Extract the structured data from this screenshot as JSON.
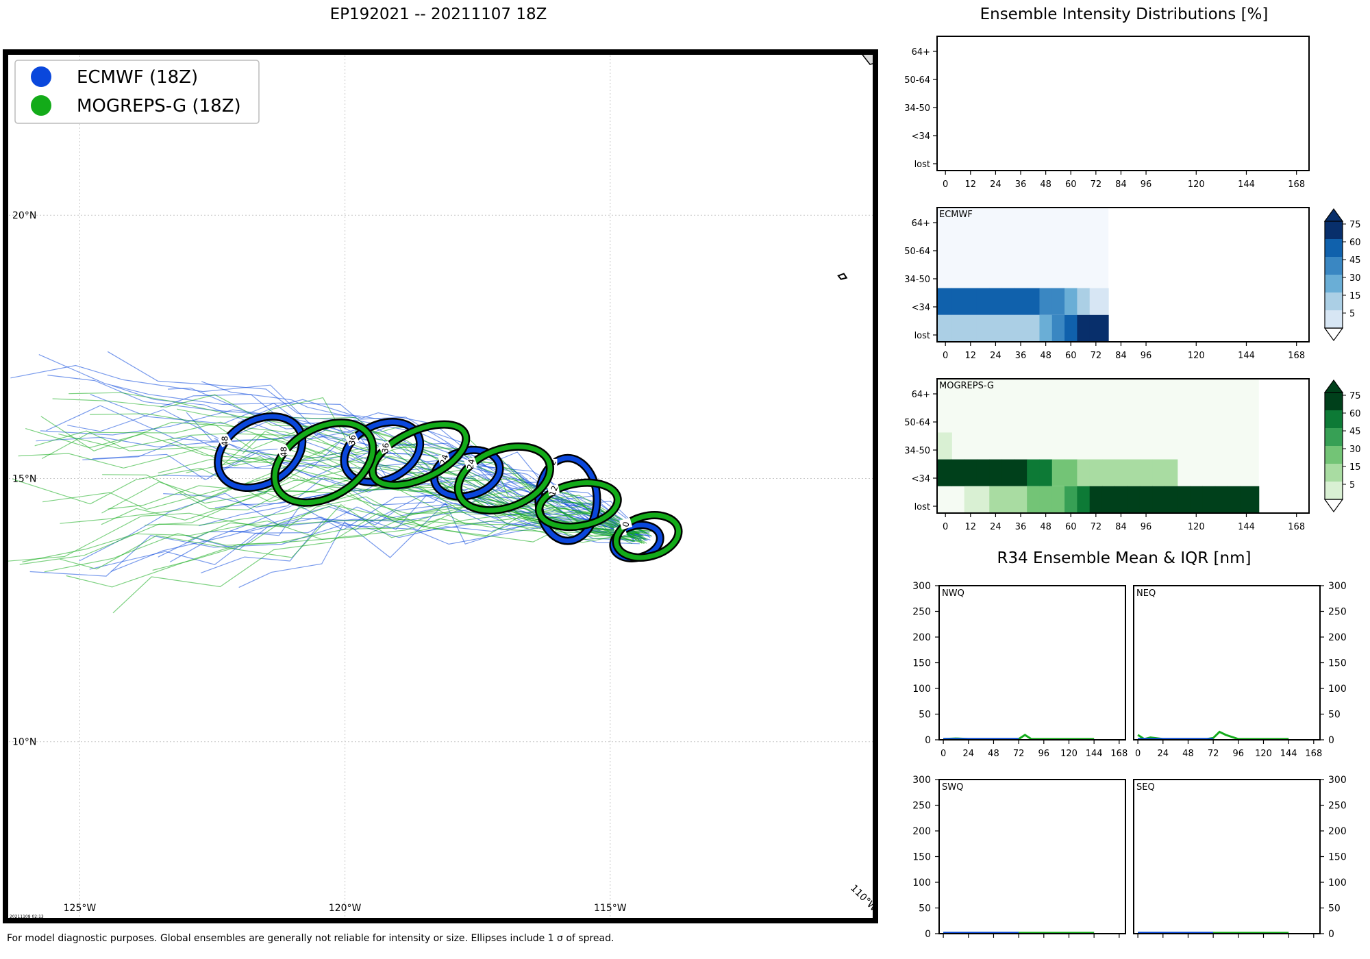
{
  "page": {
    "map_title": "EP192021 -- 20211107 18Z",
    "intensity_title": "Ensemble Intensity Distributions [%]",
    "r34_title": "R34 Ensemble Mean & IQR [nm]",
    "caption": "For model diagnostic purposes. Global ensembles are generally not reliable for intensity or size. Ellipses include 1 σ of spread.",
    "stamp": "20211108 02:13"
  },
  "chart_data": [
    {
      "type": "map",
      "legend": [
        {
          "label": "ECMWF (18Z)",
          "color": "#0a47dc"
        },
        {
          "label": "MOGREPS-G (18Z)",
          "color": "#13ab19"
        }
      ],
      "lon_labels": [
        "125°W",
        "120°W",
        "115°W",
        "110°W"
      ],
      "lon_values": [
        -125,
        -120,
        -115,
        -110
      ],
      "lat_labels": [
        "20°N",
        "15°N",
        "10°N"
      ],
      "lat_values": [
        20,
        15,
        10
      ],
      "xlim": [
        -126.4,
        -110.0
      ],
      "ylim": [
        6.6,
        23.1
      ],
      "grid": true,
      "legend_position": "top-left",
      "ellipses": [
        {
          "model": "ECMWF",
          "hour": "0",
          "lon": -114.5,
          "lat": 13.8,
          "rx_deg": 0.45,
          "ry_deg": 0.3,
          "angle": -15
        },
        {
          "model": "MOGREPS-G",
          "hour": "0",
          "lon": -114.3,
          "lat": 13.9,
          "rx_deg": 0.6,
          "ry_deg": 0.38,
          "angle": -15
        },
        {
          "model": "ECMWF",
          "hour": "12",
          "lon": -115.8,
          "lat": 14.6,
          "rx_deg": 0.55,
          "ry_deg": 0.78,
          "angle": 0
        },
        {
          "model": "MOGREPS-G",
          "hour": "12",
          "lon": -115.6,
          "lat": 14.5,
          "rx_deg": 0.75,
          "ry_deg": 0.4,
          "angle": -10
        },
        {
          "model": "ECMWF",
          "hour": "24",
          "lon": -117.7,
          "lat": 15.1,
          "rx_deg": 0.63,
          "ry_deg": 0.42,
          "angle": -15
        },
        {
          "model": "MOGREPS-G",
          "hour": "24",
          "lon": -117.0,
          "lat": 15.0,
          "rx_deg": 0.9,
          "ry_deg": 0.55,
          "angle": -20
        },
        {
          "model": "ECMWF",
          "hour": "36",
          "lon": -119.3,
          "lat": 15.5,
          "rx_deg": 0.75,
          "ry_deg": 0.52,
          "angle": -25
        },
        {
          "model": "MOGREPS-G",
          "hour": "36",
          "lon": -118.6,
          "lat": 15.45,
          "rx_deg": 0.95,
          "ry_deg": 0.45,
          "angle": -25
        },
        {
          "model": "ECMWF",
          "hour": "48",
          "lon": -121.6,
          "lat": 15.5,
          "rx_deg": 0.85,
          "ry_deg": 0.6,
          "angle": -30
        },
        {
          "model": "MOGREPS-G",
          "hour": "48",
          "lon": -120.4,
          "lat": 15.3,
          "rx_deg": 1.0,
          "ry_deg": 0.65,
          "angle": -30
        }
      ]
    },
    {
      "type": "heatmap",
      "panel_label": "",
      "categories_y": [
        "64+",
        "50-64",
        "34-50",
        "<34",
        "lost"
      ],
      "x_ticks": [
        "0",
        "12",
        "24",
        "36",
        "48",
        "60",
        "72",
        "84",
        "96",
        "120",
        "144",
        "168"
      ],
      "x_tick_values": [
        0,
        12,
        24,
        36,
        48,
        60,
        72,
        84,
        96,
        120,
        144,
        168
      ],
      "xlim": [
        -4,
        174
      ],
      "cells": []
    },
    {
      "type": "heatmap",
      "panel_label": "ECMWF",
      "colorscale": "Blues",
      "colorbar_ticks": [
        "75",
        "60",
        "45",
        "30",
        "15",
        "5"
      ],
      "categories_y": [
        "64+",
        "50-64",
        "34-50",
        "<34",
        "lost"
      ],
      "x_ticks": [
        "0",
        "12",
        "24",
        "36",
        "48",
        "60",
        "72",
        "84",
        "96",
        "120",
        "144",
        "168"
      ],
      "x_tick_values": [
        0,
        12,
        24,
        36,
        48,
        60,
        72,
        84,
        96,
        120,
        144,
        168
      ],
      "xlim": [
        -4,
        174
      ],
      "time_steps": [
        0,
        6,
        12,
        18,
        24,
        30,
        36,
        42,
        48,
        54,
        60,
        66,
        72
      ],
      "values": {
        "64+": [
          0,
          0,
          0,
          0,
          0,
          0,
          0,
          0,
          0,
          0,
          0,
          0,
          0
        ],
        "50-64": [
          0,
          0,
          0,
          0,
          0,
          0,
          0,
          0,
          0,
          0,
          0,
          0,
          0
        ],
        "34-50": [
          0,
          0,
          0,
          0,
          0,
          0,
          0,
          0,
          0,
          0,
          0,
          0,
          0
        ],
        "<34": [
          65,
          65,
          65,
          65,
          65,
          65,
          65,
          65,
          50,
          50,
          40,
          25,
          10
        ],
        "lost": [
          25,
          25,
          25,
          25,
          25,
          25,
          25,
          25,
          40,
          50,
          65,
          80,
          80
        ]
      }
    },
    {
      "type": "heatmap",
      "panel_label": "MOGREPS-G",
      "colorscale": "Greens",
      "colorbar_ticks": [
        "75",
        "60",
        "45",
        "30",
        "15",
        "5"
      ],
      "categories_y": [
        "64+",
        "50-64",
        "34-50",
        "<34",
        "lost"
      ],
      "x_ticks": [
        "0",
        "12",
        "24",
        "36",
        "48",
        "60",
        "72",
        "84",
        "96",
        "120",
        "144",
        "168"
      ],
      "x_tick_values": [
        0,
        12,
        24,
        36,
        48,
        60,
        72,
        84,
        96,
        120,
        144,
        168
      ],
      "xlim": [
        -4,
        174
      ],
      "time_steps": [
        0,
        6,
        12,
        18,
        24,
        30,
        36,
        42,
        48,
        54,
        60,
        66,
        72,
        78,
        84,
        90,
        96,
        102,
        108,
        114,
        120,
        126,
        132,
        138,
        144
      ],
      "values": {
        "64+": [
          0,
          0,
          0,
          0,
          0,
          0,
          0,
          0,
          0,
          0,
          0,
          0,
          0,
          0,
          0,
          0,
          0,
          0,
          0,
          0,
          0,
          0,
          0,
          0,
          0
        ],
        "50-64": [
          0,
          0,
          0,
          0,
          0,
          0,
          0,
          0,
          0,
          0,
          0,
          0,
          0,
          0,
          0,
          0,
          0,
          0,
          0,
          0,
          0,
          0,
          0,
          0,
          0
        ],
        "34-50": [
          6,
          0,
          0,
          0,
          0,
          0,
          0,
          0,
          0,
          0,
          0,
          0,
          0,
          0,
          0,
          0,
          0,
          0,
          0,
          0,
          0,
          0,
          0,
          0,
          0
        ],
        "<34": [
          85,
          85,
          85,
          85,
          85,
          85,
          85,
          65,
          65,
          40,
          40,
          25,
          15,
          15,
          15,
          15,
          15,
          15,
          15,
          0,
          0,
          0,
          0,
          0,
          0
        ],
        "lost": [
          0,
          0,
          5,
          5,
          15,
          15,
          15,
          30,
          30,
          40,
          50,
          60,
          85,
          85,
          85,
          85,
          85,
          85,
          85,
          85,
          85,
          85,
          85,
          85,
          85
        ]
      }
    },
    {
      "type": "line",
      "panel_label": "NWQ",
      "ylim": [
        0,
        300
      ],
      "y_ticks": [
        0,
        50,
        100,
        150,
        200,
        250,
        300
      ],
      "x_ticks": [
        0,
        24,
        48,
        72,
        96,
        120,
        144,
        168
      ],
      "xlim": [
        -4,
        174
      ],
      "series": [
        {
          "color": "#13ab19",
          "x": [
            0,
            12,
            24,
            36,
            48,
            60,
            72,
            78,
            84,
            96,
            108,
            120,
            132,
            144
          ],
          "y": [
            0,
            1,
            0,
            0,
            0,
            0,
            0,
            8,
            0,
            0,
            0,
            0,
            0,
            0
          ]
        },
        {
          "color": "#0a47dc",
          "x": [
            0,
            12,
            24,
            36,
            48,
            60,
            72
          ],
          "y": [
            0,
            0,
            0,
            0,
            0,
            0,
            0
          ]
        }
      ]
    },
    {
      "type": "line",
      "panel_label": "NEQ",
      "ylim": [
        0,
        300
      ],
      "y_ticks": [
        0,
        50,
        100,
        150,
        200,
        250,
        300
      ],
      "x_ticks": [
        0,
        24,
        48,
        72,
        96,
        120,
        144,
        168
      ],
      "xlim": [
        -4,
        174
      ],
      "series": [
        {
          "color": "#13ab19",
          "x": [
            0,
            6,
            12,
            24,
            36,
            48,
            60,
            66,
            72,
            78,
            84,
            96,
            108,
            120,
            132,
            144
          ],
          "y": [
            8,
            0,
            3,
            0,
            0,
            0,
            0,
            0,
            2,
            14,
            8,
            0,
            0,
            0,
            0,
            0
          ]
        },
        {
          "color": "#0a47dc",
          "x": [
            0,
            12,
            24,
            36,
            48,
            60,
            72
          ],
          "y": [
            0,
            0,
            0,
            0,
            0,
            0,
            0
          ]
        }
      ]
    },
    {
      "type": "line",
      "panel_label": "SWQ",
      "ylim": [
        0,
        300
      ],
      "y_ticks": [
        0,
        50,
        100,
        150,
        200,
        250,
        300
      ],
      "x_ticks": [
        0,
        24,
        48,
        72,
        96,
        120,
        144,
        168
      ],
      "xlim": [
        -4,
        174
      ],
      "series": [
        {
          "color": "#13ab19",
          "x": [
            0,
            24,
            48,
            72,
            96,
            120,
            144
          ],
          "y": [
            0,
            0,
            0,
            0,
            0,
            0,
            0
          ]
        },
        {
          "color": "#0a47dc",
          "x": [
            0,
            12,
            24,
            36,
            48,
            60,
            72
          ],
          "y": [
            0,
            0,
            0,
            0,
            0,
            0,
            0
          ]
        }
      ]
    },
    {
      "type": "line",
      "panel_label": "SEQ",
      "ylim": [
        0,
        300
      ],
      "y_ticks": [
        0,
        50,
        100,
        150,
        200,
        250,
        300
      ],
      "x_ticks": [
        0,
        24,
        48,
        72,
        96,
        120,
        144,
        168
      ],
      "xlim": [
        -4,
        174
      ],
      "series": [
        {
          "color": "#13ab19",
          "x": [
            0,
            24,
            48,
            72,
            96,
            120,
            144
          ],
          "y": [
            0,
            0,
            0,
            0,
            0,
            0,
            0
          ]
        },
        {
          "color": "#0a47dc",
          "x": [
            0,
            12,
            24,
            36,
            48,
            60,
            72
          ],
          "y": [
            0,
            0,
            0,
            0,
            0,
            0,
            0
          ]
        }
      ]
    }
  ]
}
